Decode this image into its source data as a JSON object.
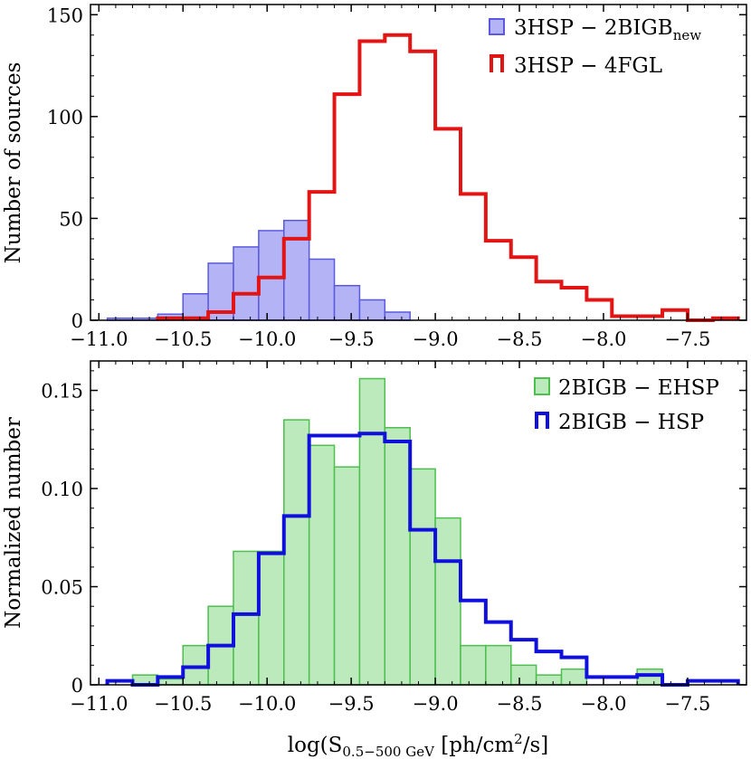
{
  "chart_data": [
    {
      "type": "histogram",
      "panel": "top",
      "ylabel": "Number of sources",
      "xlim": [
        -11.05,
        -7.15
      ],
      "ylim": [
        0,
        155
      ],
      "xticks": [
        -11.0,
        -10.5,
        -10.0,
        -9.5,
        -9.0,
        -8.5,
        -8.0,
        -7.5
      ],
      "xtick_labels": [
        "−11.0",
        "−10.5",
        "−10.0",
        "−9.5",
        "−9.0",
        "−8.5",
        "−8.0",
        "−7.5"
      ],
      "yticks": [
        0,
        50,
        100,
        150
      ],
      "ytick_labels": [
        "0",
        "50",
        "100",
        "150"
      ],
      "legend_position": "top-right",
      "series": [
        {
          "name": "3HSP − 2BIGB",
          "subscript": "new",
          "style": "filled",
          "color": "#5a5ae0",
          "fill": "#b3b3f5",
          "edges": [
            -10.95,
            -10.8,
            -10.65,
            -10.5,
            -10.35,
            -10.2,
            -10.05,
            -9.9,
            -9.75,
            -9.6,
            -9.45,
            -9.3,
            -9.15
          ],
          "counts": [
            1,
            1,
            3,
            13,
            28,
            36,
            44,
            49,
            30,
            17,
            10,
            4
          ]
        },
        {
          "name": "3HSP − 4FGL",
          "subscript": "",
          "style": "step",
          "color": "#e31414",
          "edges": [
            -10.65,
            -10.5,
            -10.35,
            -10.2,
            -10.05,
            -9.9,
            -9.75,
            -9.6,
            -9.45,
            -9.3,
            -9.15,
            -9.0,
            -8.85,
            -8.7,
            -8.55,
            -8.4,
            -8.25,
            -8.1,
            -7.95,
            -7.8,
            -7.65,
            -7.5,
            -7.35,
            -7.2
          ],
          "counts": [
            1,
            1,
            4,
            13,
            21,
            40,
            63,
            111,
            137,
            140,
            132,
            94,
            62,
            39,
            31,
            19,
            16,
            10,
            2,
            2,
            5,
            0,
            1
          ]
        }
      ]
    },
    {
      "type": "histogram",
      "panel": "bottom",
      "xlabel_main": "log(S",
      "xlabel_sub": "0.5−500 GeV",
      "xlabel_mid": " [ph/cm",
      "xlabel_sup": "2",
      "xlabel_end": "/s]",
      "ylabel": "Normalized number",
      "xlim": [
        -11.05,
        -7.15
      ],
      "ylim": [
        0,
        0.165
      ],
      "xticks": [
        -11.0,
        -10.5,
        -10.0,
        -9.5,
        -9.0,
        -8.5,
        -8.0,
        -7.5
      ],
      "xtick_labels": [
        "−11.0",
        "−10.5",
        "−10.0",
        "−9.5",
        "−9.0",
        "−8.5",
        "−8.0",
        "−7.5"
      ],
      "yticks": [
        0,
        0.05,
        0.1,
        0.15
      ],
      "ytick_labels": [
        "0",
        "0.05",
        "0.10",
        "0.15"
      ],
      "legend_position": "top-right",
      "series": [
        {
          "name": "2BIGB − EHSP",
          "style": "filled",
          "color": "#4cbf4c",
          "fill": "#bdeabd",
          "edges": [
            -10.8,
            -10.65,
            -10.5,
            -10.35,
            -10.2,
            -10.05,
            -9.9,
            -9.75,
            -9.6,
            -9.45,
            -9.3,
            -9.15,
            -9.0,
            -8.85,
            -8.7,
            -8.55,
            -8.4,
            -8.25,
            -8.1,
            -7.95,
            -7.8,
            -7.65
          ],
          "counts": [
            0.005,
            0.003,
            0.02,
            0.04,
            0.068,
            0.068,
            0.135,
            0.122,
            0.111,
            0.156,
            0.131,
            0.11,
            0.085,
            0.02,
            0.02,
            0.01,
            0.005,
            0.008,
            0,
            0,
            0.008
          ]
        },
        {
          "name": "2BIGB − HSP",
          "style": "step",
          "color": "#1010dd",
          "edges": [
            -10.95,
            -10.8,
            -10.65,
            -10.5,
            -10.35,
            -10.2,
            -10.05,
            -9.9,
            -9.75,
            -9.6,
            -9.45,
            -9.3,
            -9.15,
            -9.0,
            -8.85,
            -8.7,
            -8.55,
            -8.4,
            -8.25,
            -8.1,
            -7.95,
            -7.8,
            -7.65,
            -7.5,
            -7.35,
            -7.2
          ],
          "counts": [
            0.002,
            0,
            0.004,
            0.009,
            0.02,
            0.036,
            0.067,
            0.086,
            0.127,
            0.127,
            0.128,
            0.124,
            0.079,
            0.063,
            0.043,
            0.032,
            0.023,
            0.017,
            0.014,
            0.004,
            0.004,
            0.005,
            0,
            0.002,
            0.002
          ]
        }
      ]
    }
  ]
}
